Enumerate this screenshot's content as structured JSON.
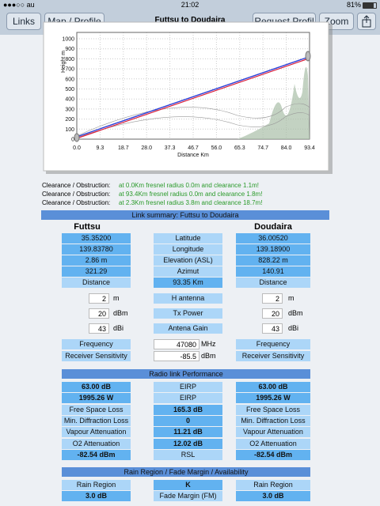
{
  "status_bar": {
    "carrier": "●●●○○ au",
    "time": "21:02",
    "battery": "81%"
  },
  "nav_bar": {
    "buttons": [
      "Links",
      "Map / Profile",
      "Request Profil",
      "Zoom"
    ],
    "title": "Futtsu to Doudaira"
  },
  "profile_chart": {
    "y_label": "Height m",
    "x_label": "Distance Km",
    "yticks": [
      "0",
      "100",
      "200",
      "300",
      "400",
      "500",
      "600",
      "700",
      "800",
      "900",
      "1000"
    ],
    "xticks": [
      "0.0",
      "9.3",
      "18.7",
      "28.0",
      "37.3",
      "46.7",
      "56.0",
      "65.3",
      "74.7",
      "84.0",
      "93.4"
    ]
  },
  "clearance": [
    {
      "label": "Clearance / Obstruction:",
      "text": "at 0.0Km  fresnel radius 0.0m and clearance 1.1m!"
    },
    {
      "label": "Clearance / Obstruction:",
      "text": "at 93.4Km  fresnel radius 0.0m and clearance 1.8m!"
    },
    {
      "label": "Clearance / Obstruction:",
      "text": "at 2.3Km  fresnel radius 3.8m and clearance 18.7m!"
    }
  ],
  "link_summary": {
    "title": "Link summary: Futtsu to Doudaira",
    "sites": [
      "Futtsu",
      "Doudaira"
    ],
    "rows": [
      [
        "35.35200",
        "Latitude",
        "36.00520"
      ],
      [
        "139.83780",
        "Longitude",
        "139.18900"
      ],
      [
        "2.86 m",
        "Elevation (ASL)",
        "828.22 m"
      ],
      [
        "321.29",
        "Azimut",
        "140.91"
      ],
      [
        "Distance",
        "93.35 Km",
        "Distance"
      ]
    ],
    "inputs": [
      [
        "2",
        "m",
        "H antenna",
        "2",
        "m"
      ],
      [
        "20",
        "dBm",
        "Tx Power",
        "20",
        "dBm"
      ],
      [
        "43",
        "dBi",
        "Antena Gain",
        "43",
        "dBi"
      ]
    ],
    "radio": [
      [
        "Frequency",
        "47080",
        "MHz",
        "Frequency"
      ],
      [
        "Receiver Sensitivity",
        "-85.5",
        "dBm",
        "Receiver Sensitivity"
      ]
    ]
  },
  "performance": {
    "title": "Radio link Performance",
    "rows": [
      [
        "63.00 dB",
        "EIRP",
        "63.00 dB"
      ],
      [
        "1995.26 W",
        "EIRP",
        "1995.26 W"
      ],
      [
        "Free Space Loss",
        "165.3 dB",
        "Free Space Loss"
      ],
      [
        "Min. Diffraction Loss",
        "0",
        "Min. Diffraction Loss"
      ],
      [
        "Vapour Attenuation",
        "11.21 dB",
        "Vapour Attenuation"
      ],
      [
        "O2 Attenuation",
        "12.02 dB",
        "O2 Attenuation"
      ],
      [
        "-82.54 dBm",
        "RSL",
        "-82.54 dBm"
      ]
    ]
  },
  "rain": {
    "title": "Rain Region / Fade Margin / Availability",
    "rows": [
      [
        "Rain Region",
        "K",
        "Rain Region"
      ],
      [
        "3.0 dB",
        "Fade Margin (FM)",
        "3.0 dB"
      ]
    ]
  }
}
